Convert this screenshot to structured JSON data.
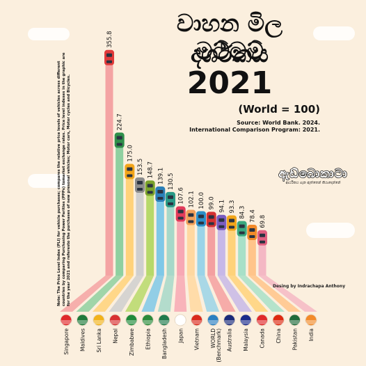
{
  "title": {
    "line1": "වාහන මිල මට්ටම්",
    "line2": "දර්ශකය",
    "year": "2021"
  },
  "world_note": "(World = 100)",
  "source": {
    "line1": "Source: World Bank. 2024.",
    "line2": "International Comparison Program: 2021."
  },
  "note": "Note: The Price Level Index (PLI) for vehicle purchases; compares the relative price levels of vehicles across different countries by comparing Purchasing Power Parities (PPPs) tomarket exchange rates. Price level indexes in the graphic are for the year 2021 and referesto the purchases of new presonal vehicles; Motor cars, Motor cycles and Bicycles.",
  "logo": {
    "name": "ඇඩ්බොකාටා",
    "tagline": "ආර්ථිකය ගැන ඇත්තෙන් කියාදෙන්නේ"
  },
  "credit": "Desing by Indrachapa Anthony",
  "chart_data": {
    "type": "bar",
    "categories": [
      "Singapore",
      "Maldives",
      "Sri Lanka",
      "Nepal",
      "Zimbabwe",
      "Ethiopia",
      "Bangladesh",
      "Japan",
      "Vietnam",
      "WORLD (Benchmark)",
      "Australia",
      "Malaysia",
      "Canada",
      "China",
      "Pakistan",
      "India"
    ],
    "series": [
      {
        "values": [
          355.8,
          224.7,
          175.0,
          153.5,
          148.7,
          139.1,
          130.5,
          107.6,
          102.1,
          100.0,
          99.0,
          94.1,
          93.3,
          84.3,
          78.4,
          69.8
        ]
      }
    ],
    "value_labels": [
      "355.8",
      "224.7",
      "175.0",
      "153.5",
      "148.7",
      "139.1",
      "130.5",
      "107.6",
      "102.1",
      "100.0",
      "99.0",
      "94.1",
      "93.3",
      "84.3",
      "78.4",
      "69.8"
    ],
    "colors": [
      "#f4a3a3",
      "#8fd0a0",
      "#ffd27a",
      "#cfcfcf",
      "#b7d96a",
      "#7fc8e8",
      "#a6d8c9",
      "#f7a8b4",
      "#ffd8a0",
      "#9ad4e8",
      "#f4a0a0",
      "#c7b8e8",
      "#ffd27a",
      "#a8e0c8",
      "#ffc48a",
      "#f4b8c4"
    ],
    "car_colors": [
      "#e03a3a",
      "#2f8f4a",
      "#f2a51a",
      "#8c8c8c",
      "#7aa22b",
      "#2b7fb8",
      "#2a9a86",
      "#e23b5a",
      "#f2a05a",
      "#2b8fc8",
      "#d63232",
      "#7a5cc0",
      "#f2a51a",
      "#3aa880",
      "#f28a2a",
      "#e06080"
    ],
    "flag_colors": [
      "#e0282a",
      "#1f7a3a",
      "#f2b21a",
      "#d83030",
      "#1f8a3a",
      "#2a8a3a",
      "#1f7a4a",
      "#ffffff",
      "#da2a1c",
      "#2a7fc0",
      "#1a2a7a",
      "#1a2a8a",
      "#e0282a",
      "#de2910",
      "#1f6a3a",
      "#f28a2a"
    ],
    "ylim": [
      0,
      360
    ]
  }
}
